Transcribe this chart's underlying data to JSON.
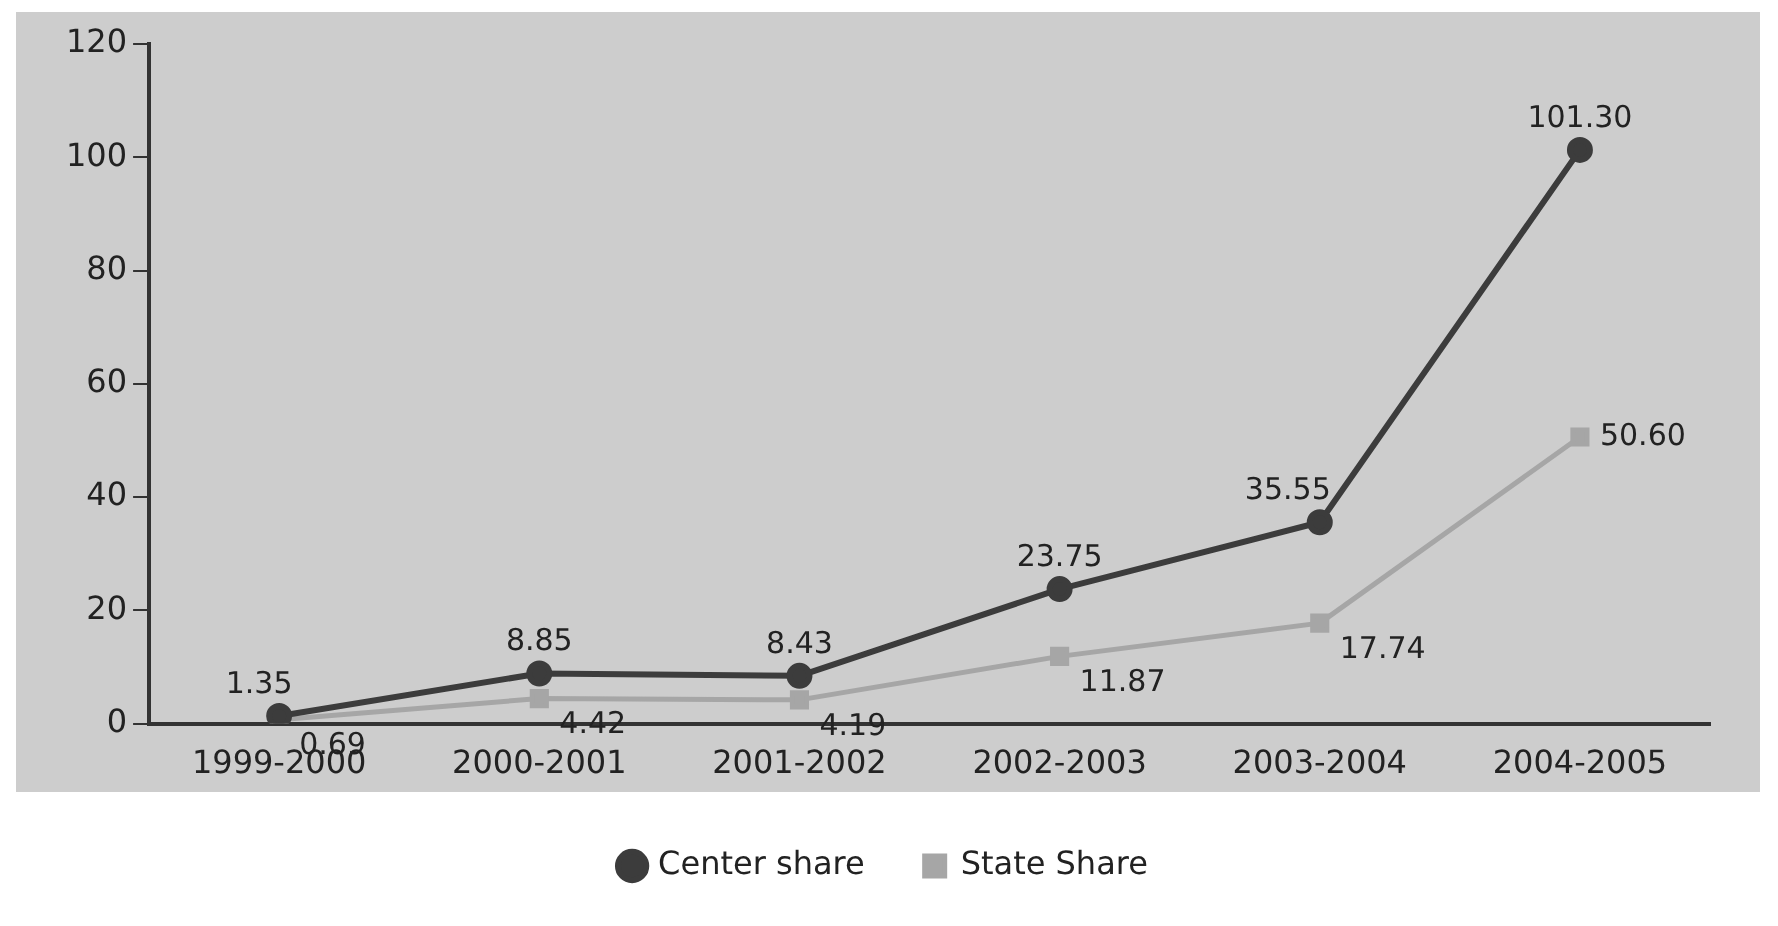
{
  "chart_data": {
    "type": "line",
    "categories": [
      "1999-2000",
      "2000-2001",
      "2001-2002",
      "2002-2003",
      "2003-2004",
      "2004-2005"
    ],
    "series": [
      {
        "name": "Center share",
        "color": "#3c3c3c",
        "marker": "circle",
        "values": [
          1.35,
          8.85,
          8.43,
          23.75,
          35.55,
          101.3
        ],
        "value_labels": [
          "1.35",
          "8.85",
          "8.43",
          "23.75",
          "35.55",
          "101.30"
        ]
      },
      {
        "name": "State Share",
        "color": "#a6a6a6",
        "marker": "square",
        "values": [
          0.69,
          4.42,
          4.19,
          11.87,
          17.74,
          50.6
        ],
        "value_labels": [
          "0.69",
          "4.42",
          "4.19",
          "11.87",
          "17.74",
          "50.60"
        ]
      }
    ],
    "ylim": [
      0,
      120
    ],
    "yticks": [
      0,
      20,
      40,
      60,
      80,
      100,
      120
    ],
    "grid": false,
    "legend": "bottom",
    "line_style": "solid"
  }
}
